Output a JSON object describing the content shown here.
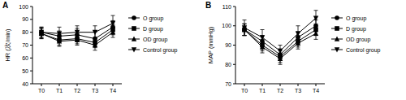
{
  "chart_data": [
    {
      "type": "line",
      "title": "A",
      "y_label": "HR (次/min)",
      "categories": [
        "T0",
        "T1",
        "T2",
        "T3",
        "T4"
      ],
      "ylim": [
        40,
        100
      ],
      "yticks": [
        40,
        50,
        60,
        70,
        80,
        90,
        100
      ],
      "legend": "right",
      "series": [
        {
          "name": "O group",
          "color": "#000000",
          "marker": "circle",
          "line_style": "solid",
          "values": [
            80,
            77,
            78,
            75,
            84
          ],
          "errors": [
            4,
            4,
            5,
            5,
            5
          ]
        },
        {
          "name": "D group",
          "color": "#000000",
          "marker": "square",
          "line_style": "solid",
          "values": [
            79,
            74,
            75,
            72,
            82
          ],
          "errors": [
            4,
            4,
            4,
            4,
            4
          ]
        },
        {
          "name": "OD group",
          "color": "#000000",
          "marker": "triangle",
          "line_style": "solid",
          "values": [
            79,
            73,
            74,
            70,
            80
          ],
          "errors": [
            4,
            4,
            4,
            4,
            4
          ]
        },
        {
          "name": "Control group",
          "color": "#000000",
          "marker": "triangle-down",
          "line_style": "solid",
          "values": [
            80,
            79,
            80,
            80,
            87
          ],
          "errors": [
            4,
            5,
            5,
            5,
            6
          ]
        }
      ]
    },
    {
      "type": "line",
      "title": "B",
      "y_label": "MAP (mmHg)",
      "categories": [
        "T0",
        "T1",
        "T2",
        "T3",
        "T4"
      ],
      "ylim": [
        70,
        110
      ],
      "yticks": [
        70,
        80,
        90,
        100,
        110
      ],
      "legend": "right",
      "series": [
        {
          "name": "O group",
          "color": "#000000",
          "marker": "circle",
          "line_style": "solid",
          "values": [
            98,
            92,
            85,
            94,
            100
          ],
          "errors": [
            3,
            3,
            3,
            3,
            3
          ]
        },
        {
          "name": "D group",
          "color": "#000000",
          "marker": "square",
          "line_style": "solid",
          "values": [
            98,
            90,
            84,
            92,
            98
          ],
          "errors": [
            3,
            3,
            3,
            3,
            3
          ]
        },
        {
          "name": "OD group",
          "color": "#000000",
          "marker": "triangle",
          "line_style": "solid",
          "values": [
            98,
            89,
            83,
            91,
            96
          ],
          "errors": [
            3,
            3,
            3,
            3,
            3
          ]
        },
        {
          "name": "Control group",
          "color": "#000000",
          "marker": "triangle-down",
          "line_style": "solid",
          "values": [
            99,
            94,
            87,
            96,
            104
          ],
          "errors": [
            4,
            4,
            3,
            4,
            4
          ]
        }
      ]
    }
  ]
}
